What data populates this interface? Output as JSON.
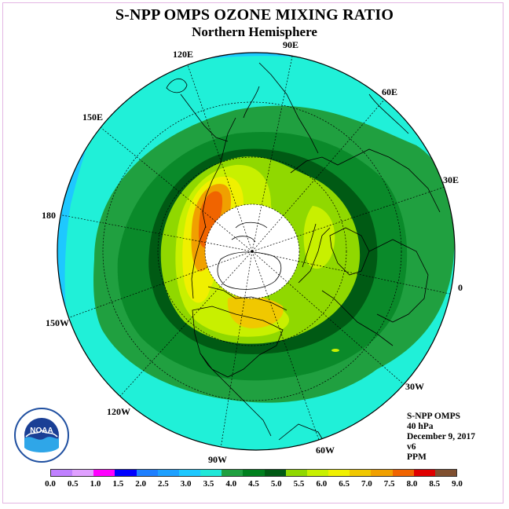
{
  "title": "S-NPP OMPS OZONE MIXING RATIO",
  "subtitle": "Northern Hemisphere",
  "longitude_labels": {
    "e90": "90E",
    "e60": "60E",
    "e30": "30E",
    "zero": "0",
    "w30": "30W",
    "w60": "60W",
    "w90": "90W",
    "w120": "120W",
    "w150": "150W",
    "d180": "180",
    "e150": "150E",
    "e120": "120E"
  },
  "info": {
    "instrument": "S-NPP OMPS",
    "level": "40 hPa",
    "date": "December 9, 2017",
    "version": "v6",
    "units": "PPM"
  },
  "legend": {
    "ticks": [
      "0.0",
      "0.5",
      "1.0",
      "1.5",
      "2.0",
      "2.5",
      "3.0",
      "3.5",
      "4.0",
      "4.5",
      "5.0",
      "5.5",
      "6.0",
      "6.5",
      "7.0",
      "7.5",
      "8.0",
      "8.5",
      "9.0"
    ],
    "colors": [
      "#c080ff",
      "#e0a0ff",
      "#ff00ff",
      "#0000ff",
      "#1e7fff",
      "#1ea0ff",
      "#1ec8ff",
      "#20e8d8",
      "#20a040",
      "#00801e",
      "#005a14",
      "#90d800",
      "#c8f000",
      "#f0f000",
      "#f0c800",
      "#f0a000",
      "#f06400",
      "#e00000",
      "#805030"
    ]
  },
  "logo": {
    "name": "noaa-logo",
    "text": "NOAA"
  },
  "colors": {
    "ocean_outer": "#1ec8ff",
    "cyan": "#20f0d8",
    "green_light": "#20a040",
    "green_mid": "#0a8a2a",
    "green_dark": "#005a14",
    "yellowgreen": "#90d800",
    "lime": "#c8f000",
    "yellow": "#f0f000",
    "orange": "#f0a000",
    "red": "#f06400",
    "polar_night": "#ffffff"
  }
}
